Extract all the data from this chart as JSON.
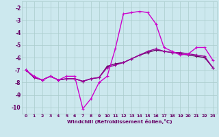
{
  "xlabel": "Windchill (Refroidissement éolien,°C)",
  "hours": [
    0,
    1,
    2,
    3,
    4,
    5,
    6,
    7,
    8,
    9,
    10,
    11,
    12,
    13,
    14,
    15,
    16,
    17,
    18,
    19,
    20,
    21,
    22,
    23
  ],
  "line1": [
    -7.0,
    -7.5,
    -7.8,
    -7.5,
    -7.8,
    -7.5,
    -7.5,
    -10.1,
    -9.3,
    -8.0,
    -7.5,
    -5.3,
    -2.5,
    -2.4,
    -2.3,
    -2.4,
    -3.3,
    -5.2,
    -5.5,
    -5.8,
    -5.7,
    -5.2,
    -5.2,
    -6.2
  ],
  "line2": [
    -7.0,
    -7.6,
    -7.8,
    -7.5,
    -7.8,
    -7.7,
    -7.7,
    -7.9,
    -7.7,
    -7.6,
    -6.7,
    -6.5,
    -6.4,
    -6.1,
    -5.8,
    -5.6,
    -5.4,
    -5.5,
    -5.6,
    -5.7,
    -5.8,
    -5.9,
    -6.0,
    -6.8
  ],
  "line3": [
    -7.0,
    -7.6,
    -7.8,
    -7.5,
    -7.8,
    -7.7,
    -7.7,
    -7.9,
    -7.7,
    -7.6,
    -6.8,
    -6.6,
    -6.4,
    -6.1,
    -5.8,
    -5.5,
    -5.3,
    -5.5,
    -5.6,
    -5.6,
    -5.7,
    -5.8,
    -5.9,
    -6.8
  ],
  "color1": "#cc00cc",
  "color2": "#660066",
  "color3": "#990099",
  "bg_color": "#cce8ee",
  "grid_color": "#aacccc",
  "text_color": "#660066",
  "ylim": [
    -10.5,
    -1.5
  ],
  "yticks": [
    -10,
    -9,
    -8,
    -7,
    -6,
    -5,
    -4,
    -3,
    -2
  ],
  "xlim": [
    -0.5,
    23.5
  ],
  "marker": "+",
  "markersize": 3.5,
  "linewidth": 1.0
}
